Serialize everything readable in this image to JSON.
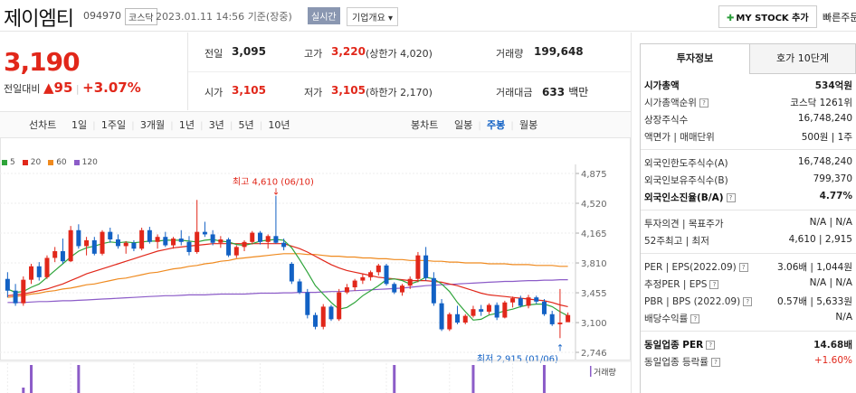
{
  "header": {
    "name": "제이엠티",
    "code": "094970",
    "market": "코스닥",
    "datetime": "2023.01.11 14:56",
    "basis": "기준(장중)",
    "realtime": "실시간",
    "company_info": "기업개요",
    "mystock": "MY STOCK 추가",
    "quick": "빠른주문"
  },
  "quote": {
    "price": "3,190",
    "change_label": "전일대비",
    "change": "95",
    "change_rate": "+3.07%",
    "prev_label": "전일",
    "prev": "3,095",
    "high_label": "고가",
    "high": "3,220",
    "upper": "(상한가 4,020)",
    "volume_label": "거래량",
    "volume": "199,648",
    "open_label": "시가",
    "open": "3,105",
    "low_label": "저가",
    "low": "3,105",
    "lower": "(하한가 2,170)",
    "amount_label": "거래대금",
    "amount": "633",
    "amount_unit": "백만"
  },
  "toolbar": {
    "line_chart": "선차트",
    "periods": [
      "1일",
      "1주일",
      "3개월",
      "1년",
      "3년",
      "5년",
      "10년"
    ],
    "candle_chart": "봉차트",
    "candles": [
      "일봉",
      "주봉",
      "월봉"
    ],
    "active_candle": "주봉"
  },
  "legend": [
    {
      "label": "5",
      "color": "#2ea43a"
    },
    {
      "label": "20",
      "color": "#e1271a"
    },
    {
      "label": "60",
      "color": "#ef8a1f"
    },
    {
      "label": "120",
      "color": "#8c5cc8"
    }
  ],
  "chart_data": {
    "type": "candlestick",
    "y_ticks": [
      "4,875",
      "4,520",
      "4,165",
      "3,810",
      "3,455",
      "3,100",
      "2,746"
    ],
    "ylim": [
      2746,
      4875
    ],
    "annotations": {
      "high": "최고 4,610 (06/10)",
      "low": "최저 2,915 (01/06)"
    },
    "volume_label": "거래량",
    "candles": [
      [
        3620,
        3700,
        3400,
        3480
      ],
      [
        3480,
        3560,
        3300,
        3330
      ],
      [
        3330,
        3650,
        3300,
        3610
      ],
      [
        3610,
        3800,
        3560,
        3770
      ],
      [
        3770,
        3820,
        3600,
        3640
      ],
      [
        3640,
        3900,
        3620,
        3870
      ],
      [
        3870,
        4000,
        3820,
        3950
      ],
      [
        3950,
        4100,
        3800,
        3830
      ],
      [
        3830,
        4250,
        3820,
        4200
      ],
      [
        4200,
        4270,
        3980,
        4010
      ],
      [
        4010,
        4120,
        3900,
        4080
      ],
      [
        4080,
        4120,
        3900,
        3920
      ],
      [
        3920,
        4200,
        3900,
        4180
      ],
      [
        4180,
        4230,
        4050,
        4090
      ],
      [
        4090,
        4150,
        3980,
        4010
      ],
      [
        4010,
        4070,
        3920,
        4050
      ],
      [
        4050,
        4080,
        3950,
        3980
      ],
      [
        3980,
        4230,
        3960,
        4200
      ],
      [
        4200,
        4240,
        4040,
        4060
      ],
      [
        4060,
        4150,
        3980,
        4120
      ],
      [
        4120,
        4180,
        4000,
        4020
      ],
      [
        4020,
        4120,
        3980,
        4100
      ],
      [
        4100,
        4200,
        4020,
        4060
      ],
      [
        4060,
        4130,
        3900,
        3940
      ],
      [
        3940,
        4560,
        3920,
        4180
      ],
      [
        4180,
        4300,
        4120,
        4150
      ],
      [
        4150,
        4200,
        4020,
        4050
      ],
      [
        4050,
        4130,
        3990,
        4090
      ],
      [
        4090,
        4110,
        3880,
        3900
      ],
      [
        3900,
        4020,
        3870,
        4000
      ],
      [
        4000,
        4080,
        3950,
        4060
      ],
      [
        4060,
        4190,
        4030,
        4170
      ],
      [
        4170,
        4190,
        4030,
        4060
      ],
      [
        4060,
        4150,
        3980,
        4130
      ],
      [
        4130,
        4610,
        4040,
        4050
      ],
      [
        4050,
        4100,
        3960,
        4000
      ],
      [
        3800,
        3820,
        3560,
        3590
      ],
      [
        3590,
        3620,
        3440,
        3460
      ],
      [
        3460,
        3500,
        3150,
        3190
      ],
      [
        3190,
        3220,
        3020,
        3050
      ],
      [
        3050,
        3320,
        3020,
        3290
      ],
      [
        3290,
        3310,
        3120,
        3140
      ],
      [
        3140,
        3500,
        3120,
        3460
      ],
      [
        3460,
        3560,
        3440,
        3520
      ],
      [
        3520,
        3620,
        3480,
        3600
      ],
      [
        3600,
        3680,
        3560,
        3640
      ],
      [
        3640,
        3720,
        3600,
        3700
      ],
      [
        3700,
        3800,
        3660,
        3780
      ],
      [
        3780,
        3800,
        3540,
        3560
      ],
      [
        3560,
        3580,
        3440,
        3460
      ],
      [
        3460,
        3560,
        3420,
        3540
      ],
      [
        3540,
        3650,
        3500,
        3620
      ],
      [
        3620,
        3940,
        3580,
        3900
      ],
      [
        3900,
        4000,
        3600,
        3630
      ],
      [
        3630,
        3700,
        3300,
        3330
      ],
      [
        3330,
        3380,
        3000,
        3020
      ],
      [
        3020,
        3220,
        3000,
        3200
      ],
      [
        3200,
        3300,
        3080,
        3100
      ],
      [
        3100,
        3200,
        3080,
        3180
      ],
      [
        3180,
        3300,
        3160,
        3260
      ],
      [
        3260,
        3310,
        3180,
        3230
      ],
      [
        3230,
        3330,
        3200,
        3310
      ],
      [
        3310,
        3340,
        3130,
        3160
      ],
      [
        3160,
        3360,
        3150,
        3340
      ],
      [
        3340,
        3410,
        3280,
        3390
      ],
      [
        3390,
        3420,
        3280,
        3300
      ],
      [
        3300,
        3430,
        3270,
        3400
      ],
      [
        3400,
        3420,
        3320,
        3350
      ],
      [
        3350,
        3380,
        3180,
        3200
      ],
      [
        3200,
        3240,
        3060,
        3080
      ],
      [
        3080,
        3500,
        2915,
        3100
      ],
      [
        3105,
        3220,
        3105,
        3190
      ]
    ],
    "ma5": [
      3500,
      3460,
      3470,
      3520,
      3560,
      3640,
      3720,
      3800,
      3880,
      3950,
      3990,
      4010,
      4040,
      4060,
      4050,
      4060,
      4050,
      4060,
      4070,
      4070,
      4080,
      4080,
      4080,
      4070,
      4060,
      4080,
      4090,
      4070,
      4060,
      4030,
      4020,
      4040,
      4070,
      4080,
      4090,
      4080,
      3990,
      3850,
      3700,
      3540,
      3440,
      3340,
      3260,
      3280,
      3340,
      3420,
      3480,
      3540,
      3610,
      3620,
      3600,
      3560,
      3590,
      3640,
      3620,
      3560,
      3470,
      3340,
      3230,
      3130,
      3140,
      3190,
      3210,
      3240,
      3260,
      3290,
      3310,
      3320,
      3320,
      3290,
      3230,
      3180
    ],
    "ma20": [
      3420,
      3430,
      3440,
      3460,
      3480,
      3500,
      3530,
      3560,
      3600,
      3640,
      3680,
      3710,
      3740,
      3770,
      3800,
      3830,
      3860,
      3890,
      3920,
      3950,
      3970,
      3990,
      4000,
      4010,
      4020,
      4030,
      4040,
      4040,
      4040,
      4040,
      4040,
      4040,
      4040,
      4040,
      4040,
      4040,
      4010,
      3980,
      3940,
      3890,
      3840,
      3790,
      3750,
      3720,
      3700,
      3680,
      3660,
      3640,
      3630,
      3620,
      3610,
      3600,
      3600,
      3600,
      3590,
      3580,
      3560,
      3540,
      3510,
      3480,
      3450,
      3430,
      3420,
      3410,
      3400,
      3390,
      3380,
      3370,
      3360,
      3340,
      3310,
      3290
    ],
    "ma60": [
      3400,
      3410,
      3420,
      3440,
      3450,
      3470,
      3480,
      3500,
      3510,
      3530,
      3550,
      3560,
      3580,
      3600,
      3620,
      3630,
      3650,
      3670,
      3690,
      3700,
      3720,
      3740,
      3750,
      3770,
      3780,
      3800,
      3810,
      3830,
      3840,
      3860,
      3870,
      3880,
      3890,
      3900,
      3910,
      3920,
      3920,
      3920,
      3910,
      3910,
      3900,
      3890,
      3890,
      3880,
      3880,
      3870,
      3870,
      3860,
      3860,
      3850,
      3850,
      3840,
      3840,
      3840,
      3830,
      3830,
      3820,
      3820,
      3810,
      3810,
      3810,
      3800,
      3800,
      3800,
      3790,
      3790,
      3790,
      3780,
      3780,
      3780,
      3770,
      3770
    ],
    "ma120": [
      3340,
      3340,
      3340,
      3345,
      3350,
      3350,
      3355,
      3360,
      3360,
      3365,
      3370,
      3375,
      3380,
      3385,
      3390,
      3395,
      3400,
      3405,
      3410,
      3415,
      3420,
      3420,
      3425,
      3430,
      3430,
      3430,
      3435,
      3440,
      3440,
      3440,
      3440,
      3445,
      3450,
      3450,
      3450,
      3455,
      3455,
      3460,
      3460,
      3460,
      3465,
      3470,
      3470,
      3475,
      3480,
      3485,
      3490,
      3495,
      3500,
      3505,
      3510,
      3520,
      3530,
      3540,
      3545,
      3550,
      3555,
      3560,
      3565,
      3570,
      3575,
      3580,
      3585,
      3590,
      3590,
      3595,
      3600,
      3600,
      3605,
      3605,
      3610,
      3610
    ],
    "volume_spikes": [
      {
        "index": 3,
        "value": 1
      },
      {
        "index": 9,
        "value": 1
      },
      {
        "index": 49,
        "value": 1
      },
      {
        "index": 59,
        "value": 1
      },
      {
        "index": 68,
        "value": 1
      }
    ]
  },
  "panel": {
    "tab_invest": "투자정보",
    "tab_quote": "호가 10단계",
    "rows1": [
      {
        "label": "시가총액",
        "value": "534억원",
        "bold": true
      },
      {
        "label": "시가총액순위",
        "value": "코스닥 1261위",
        "icon": true
      },
      {
        "label": "상장주식수",
        "value": "16,748,240"
      },
      {
        "label": "액면가 | 매매단위",
        "value": "500원 | 1주"
      }
    ],
    "rows2": [
      {
        "label": "외국인한도주식수(A)",
        "value": "16,748,240"
      },
      {
        "label": "외국인보유주식수(B)",
        "value": "799,370"
      },
      {
        "label": "외국인소진율(B/A)",
        "value": "4.77%",
        "bold": true,
        "icon": true
      }
    ],
    "rows3": [
      {
        "label": "투자의견 | 목표주가",
        "value": "N/A | N/A"
      },
      {
        "label": "52주최고 | 최저",
        "value": "4,610 | 2,915"
      }
    ],
    "rows4": [
      {
        "label": "PER | EPS(2022.09)",
        "value": "3.06배 | 1,044원",
        "icon": true
      },
      {
        "label": "추정PER | EPS",
        "value": "N/A | N/A",
        "icon": true
      },
      {
        "label": "PBR | BPS (2022.09)",
        "value": "0.57배 | 5,633원",
        "icon": true
      },
      {
        "label": "배당수익률",
        "value": "N/A",
        "icon": true
      }
    ],
    "rows5": [
      {
        "label": "동일업종 PER",
        "value": "14.68배",
        "bold": true,
        "icon": true
      },
      {
        "label": "동일업종 등락률",
        "value": "+1.60%",
        "red": true,
        "icon": true
      }
    ]
  }
}
